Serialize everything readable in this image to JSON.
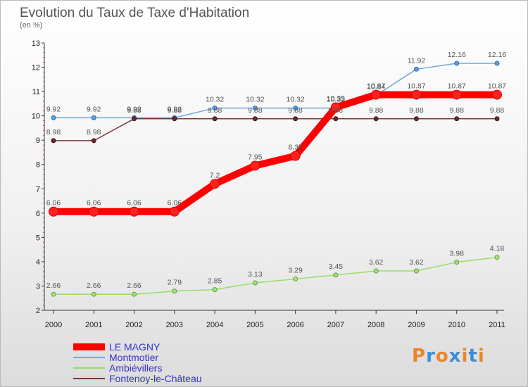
{
  "header": {
    "title": "Evolution du Taux de Taxe d'Habitation",
    "unit": "(en %)"
  },
  "logo": {
    "text": "Proxiti",
    "colors": [
      "#e8862a",
      "#3b8ed6",
      "#e8862a",
      "#3b8ed6",
      "#e8862a",
      "#3b8ed6",
      "#e8862a"
    ]
  },
  "chart_data": {
    "type": "line",
    "title": "Evolution du Taux de Taxe d'Habitation",
    "ylabel": "(en %)",
    "xlabel": "",
    "x": [
      "2000",
      "2001",
      "2002",
      "2003",
      "2004",
      "2005",
      "2006",
      "2007",
      "2008",
      "2009",
      "2010",
      "2011"
    ],
    "ylim": [
      2,
      13
    ],
    "yticks": [
      2,
      3,
      4,
      5,
      6,
      7,
      8,
      9,
      10,
      11,
      12,
      13
    ],
    "grid": false,
    "legend_position": "bottom-left",
    "series": [
      {
        "name": "LE MAGNY",
        "color": "#ff0000",
        "values": [
          6.06,
          6.06,
          6.06,
          6.06,
          7.2,
          7.95,
          8.35,
          10.35,
          10.87,
          10.87,
          10.87,
          10.87
        ],
        "labels": [
          "6.06",
          "6.06",
          "6.06",
          "6.06",
          "7.2",
          "7.95",
          "8.35",
          "10.35",
          "10.87",
          "10.87",
          "10.87",
          "10.87"
        ]
      },
      {
        "name": "Montmotier",
        "color": "#6fa8dc",
        "values": [
          9.92,
          9.92,
          9.92,
          9.92,
          10.32,
          10.32,
          10.32,
          10.32,
          10.84,
          11.92,
          12.16,
          12.16
        ],
        "labels": [
          "9.92",
          "9.92",
          "9.92",
          "9.92",
          "10.32",
          "10.32",
          "10.32",
          "10.32",
          "10.84",
          "11.92",
          "12.16",
          "12.16"
        ]
      },
      {
        "name": "Ambiévillers",
        "color": "#99dd66",
        "values": [
          2.66,
          2.66,
          2.66,
          2.79,
          2.85,
          3.13,
          3.29,
          3.45,
          3.62,
          3.62,
          3.98,
          4.18
        ],
        "labels": [
          "2.66",
          "2.66",
          "2.66",
          "2.79",
          "2.85",
          "3.13",
          "3.29",
          "3.45",
          "3.62",
          "3.62",
          "3.98",
          "4.18"
        ]
      },
      {
        "name": "Fontenoy-le-Château",
        "color": "#7a3a3a",
        "values": [
          8.98,
          8.98,
          9.88,
          9.88,
          9.88,
          9.88,
          9.88,
          9.88,
          9.88,
          9.88,
          9.88,
          9.88
        ],
        "labels": [
          "8.98",
          "8.98",
          "9.88",
          "9.88",
          "9.88",
          "9.88",
          "9.88",
          "9.88",
          "9.88",
          "9.88",
          "9.88",
          "9.88"
        ]
      }
    ]
  }
}
